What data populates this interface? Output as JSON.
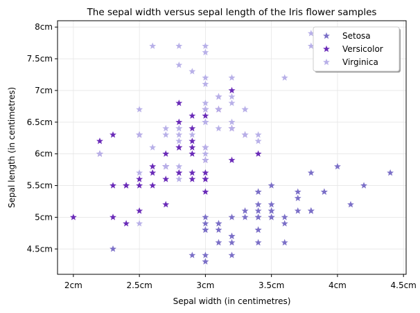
{
  "chart_data": {
    "type": "scatter",
    "title": "The sepal width versus sepal length of the Iris flower samples",
    "xlabel": "Sepal width (in centimetres)",
    "ylabel": "Sepal length (in centimetres)",
    "xlim": [
      1.88,
      4.52
    ],
    "ylim": [
      4.1,
      8.1
    ],
    "xticks": [
      2.0,
      2.5,
      3.0,
      3.5,
      4.0,
      4.5
    ],
    "xtick_labels": [
      "2cm",
      "2.5cm",
      "3cm",
      "3.5cm",
      "4cm",
      "4.5cm"
    ],
    "yticks": [
      4.5,
      5.0,
      5.5,
      6.0,
      6.5,
      7.0,
      7.5,
      8.0
    ],
    "ytick_labels": [
      "4.5cm",
      "5cm",
      "5.5cm",
      "6cm",
      "6.5cm",
      "7cm",
      "7.5cm",
      "8cm"
    ],
    "grid": true,
    "marker": "star",
    "legend": {
      "position": "top-right"
    },
    "series": [
      {
        "name": "Setosa",
        "color": "#7b6fc7",
        "points": [
          [
            3.5,
            5.1
          ],
          [
            3.0,
            4.9
          ],
          [
            3.2,
            4.7
          ],
          [
            3.1,
            4.6
          ],
          [
            3.6,
            5.0
          ],
          [
            3.9,
            5.4
          ],
          [
            3.4,
            4.6
          ],
          [
            3.4,
            5.0
          ],
          [
            2.9,
            4.4
          ],
          [
            3.1,
            4.9
          ],
          [
            3.7,
            5.4
          ],
          [
            3.4,
            4.8
          ],
          [
            3.0,
            4.8
          ],
          [
            3.0,
            4.3
          ],
          [
            4.0,
            5.8
          ],
          [
            4.4,
            5.7
          ],
          [
            3.9,
            5.4
          ],
          [
            3.5,
            5.1
          ],
          [
            3.8,
            5.7
          ],
          [
            3.8,
            5.1
          ],
          [
            3.4,
            5.4
          ],
          [
            3.7,
            5.1
          ],
          [
            3.6,
            4.6
          ],
          [
            3.3,
            5.1
          ],
          [
            3.4,
            4.8
          ],
          [
            3.0,
            5.0
          ],
          [
            3.4,
            5.0
          ],
          [
            3.5,
            5.2
          ],
          [
            3.4,
            5.2
          ],
          [
            3.2,
            4.7
          ],
          [
            3.1,
            4.8
          ],
          [
            3.4,
            5.4
          ],
          [
            4.1,
            5.2
          ],
          [
            4.2,
            5.5
          ],
          [
            3.1,
            4.9
          ],
          [
            3.2,
            5.0
          ],
          [
            3.5,
            5.5
          ],
          [
            3.6,
            4.9
          ],
          [
            3.0,
            4.4
          ],
          [
            3.4,
            5.1
          ],
          [
            3.5,
            5.0
          ],
          [
            2.3,
            4.5
          ],
          [
            3.2,
            4.4
          ],
          [
            3.5,
            5.0
          ],
          [
            3.8,
            5.1
          ],
          [
            3.0,
            4.8
          ],
          [
            3.8,
            5.1
          ],
          [
            3.2,
            4.6
          ],
          [
            3.7,
            5.3
          ],
          [
            3.3,
            5.0
          ]
        ]
      },
      {
        "name": "Versicolor",
        "color": "#6a2bb8",
        "points": [
          [
            3.2,
            7.0
          ],
          [
            3.2,
            6.4
          ],
          [
            3.1,
            6.9
          ],
          [
            2.3,
            5.5
          ],
          [
            2.8,
            6.5
          ],
          [
            2.8,
            5.7
          ],
          [
            3.3,
            6.3
          ],
          [
            2.4,
            4.9
          ],
          [
            2.9,
            6.6
          ],
          [
            2.7,
            5.2
          ],
          [
            2.0,
            5.0
          ],
          [
            3.0,
            5.9
          ],
          [
            2.2,
            6.0
          ],
          [
            2.9,
            6.1
          ],
          [
            2.9,
            5.6
          ],
          [
            3.1,
            6.7
          ],
          [
            3.0,
            5.6
          ],
          [
            2.7,
            5.8
          ],
          [
            2.2,
            6.2
          ],
          [
            2.5,
            5.6
          ],
          [
            3.2,
            5.9
          ],
          [
            2.8,
            6.1
          ],
          [
            2.5,
            6.3
          ],
          [
            2.8,
            6.1
          ],
          [
            2.9,
            6.4
          ],
          [
            3.0,
            6.6
          ],
          [
            2.8,
            6.8
          ],
          [
            3.0,
            6.7
          ],
          [
            2.9,
            6.0
          ],
          [
            2.6,
            5.7
          ],
          [
            2.4,
            5.5
          ],
          [
            2.4,
            5.5
          ],
          [
            2.7,
            5.8
          ],
          [
            2.7,
            6.0
          ],
          [
            3.0,
            5.4
          ],
          [
            3.4,
            6.0
          ],
          [
            3.1,
            6.7
          ],
          [
            2.3,
            6.3
          ],
          [
            3.0,
            5.6
          ],
          [
            2.5,
            5.5
          ],
          [
            2.6,
            5.5
          ],
          [
            3.0,
            6.1
          ],
          [
            2.6,
            5.8
          ],
          [
            2.3,
            5.0
          ],
          [
            2.7,
            5.6
          ],
          [
            3.0,
            5.7
          ],
          [
            2.9,
            5.7
          ],
          [
            2.9,
            6.2
          ],
          [
            2.5,
            5.1
          ],
          [
            2.8,
            5.7
          ]
        ]
      },
      {
        "name": "Virginica",
        "color": "#b8b0e8",
        "points": [
          [
            3.3,
            6.3
          ],
          [
            2.7,
            5.8
          ],
          [
            3.0,
            7.1
          ],
          [
            2.9,
            6.3
          ],
          [
            3.0,
            6.5
          ],
          [
            3.0,
            7.6
          ],
          [
            2.5,
            4.9
          ],
          [
            2.9,
            7.3
          ],
          [
            2.5,
            6.7
          ],
          [
            3.6,
            7.2
          ],
          [
            3.2,
            6.5
          ],
          [
            2.7,
            6.4
          ],
          [
            3.0,
            6.8
          ],
          [
            2.5,
            5.7
          ],
          [
            2.8,
            5.8
          ],
          [
            3.2,
            6.4
          ],
          [
            3.0,
            6.5
          ],
          [
            3.8,
            7.7
          ],
          [
            2.6,
            7.7
          ],
          [
            2.2,
            6.0
          ],
          [
            3.2,
            6.9
          ],
          [
            2.8,
            5.6
          ],
          [
            2.8,
            7.7
          ],
          [
            2.7,
            6.3
          ],
          [
            3.3,
            6.7
          ],
          [
            3.2,
            7.2
          ],
          [
            2.8,
            6.2
          ],
          [
            3.0,
            6.1
          ],
          [
            2.8,
            6.4
          ],
          [
            3.0,
            7.2
          ],
          [
            2.8,
            7.4
          ],
          [
            3.8,
            7.9
          ],
          [
            2.8,
            6.4
          ],
          [
            2.8,
            6.3
          ],
          [
            2.6,
            6.1
          ],
          [
            3.0,
            7.7
          ],
          [
            3.4,
            6.3
          ],
          [
            3.1,
            6.4
          ],
          [
            3.0,
            6.0
          ],
          [
            3.1,
            6.9
          ],
          [
            3.1,
            6.7
          ],
          [
            3.1,
            6.9
          ],
          [
            2.7,
            5.8
          ],
          [
            3.2,
            6.8
          ],
          [
            3.3,
            6.7
          ],
          [
            3.0,
            6.7
          ],
          [
            2.5,
            6.3
          ],
          [
            3.0,
            6.5
          ],
          [
            3.4,
            6.2
          ],
          [
            3.0,
            5.9
          ]
        ]
      }
    ]
  }
}
